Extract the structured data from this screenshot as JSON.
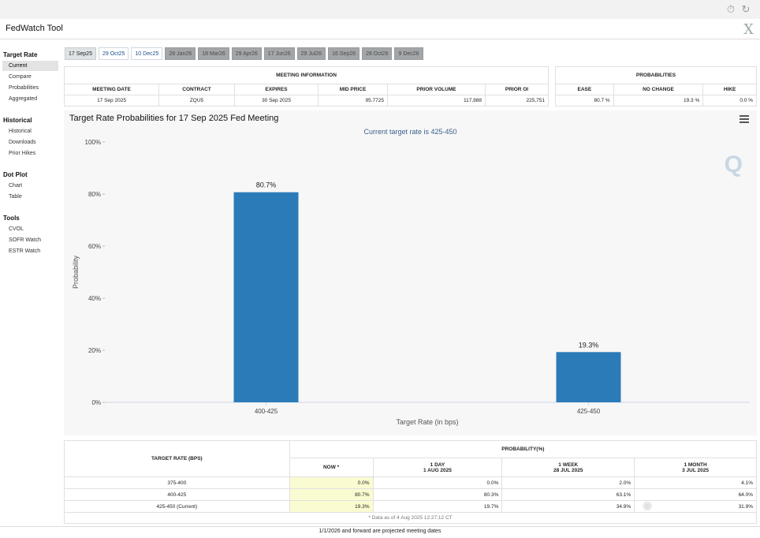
{
  "app": {
    "title": "FedWatch Tool",
    "close_glyph": "X"
  },
  "sidebar": [
    {
      "heading": "Target Rate",
      "items": [
        "Current",
        "Compare",
        "Probabilities",
        "Aggregated"
      ]
    },
    {
      "heading": "Historical",
      "items": [
        "Historical",
        "Downloads",
        "Prior Hikes"
      ]
    },
    {
      "heading": "Dot Plot",
      "items": [
        "Chart",
        "Table"
      ]
    },
    {
      "heading": "Tools",
      "items": [
        "CVOL",
        "SOFR Watch",
        "ESTR Watch"
      ]
    }
  ],
  "tabs": [
    "17 Sep25",
    "29 Oct25",
    "10 Dec25",
    "28 Jan26",
    "18 Mar26",
    "29 Apr26",
    "17 Jun26",
    "29 Jul26",
    "16 Sep26",
    "28 Oct26",
    "9 Dec26"
  ],
  "meeting_info": {
    "group_title": "MEETING INFORMATION",
    "headers": [
      "MEETING DATE",
      "CONTRACT",
      "EXPIRES",
      "MID PRICE",
      "PRIOR VOLUME",
      "PRIOR OI"
    ],
    "row": [
      "17 Sep 2025",
      "ZQU5",
      "30 Sep 2025",
      "95.7725",
      "117,988",
      "225,751"
    ]
  },
  "probabilities": {
    "group_title": "PROBABILITIES",
    "headers": [
      "EASE",
      "NO CHANGE",
      "HIKE"
    ],
    "row": [
      "80.7 %",
      "19.3 %",
      "0.0 %"
    ]
  },
  "chart": {
    "title": "Target Rate Probabilities for 17 Sep 2025 Fed Meeting",
    "subtitle": "Current target rate is 425-450"
  },
  "chart_data": {
    "type": "bar",
    "title": "Target Rate Probabilities for 17 Sep 2025 Fed Meeting",
    "subtitle": "Current target rate is 425-450",
    "categories": [
      "400-425",
      "425-450"
    ],
    "values": [
      80.7,
      19.3
    ],
    "data_labels": [
      "80.7%",
      "19.3%"
    ],
    "xlabel": "Target Rate (in bps)",
    "ylabel": "Probability",
    "ylim": [
      0,
      100
    ],
    "yticks": [
      "0%",
      "20%",
      "40%",
      "60%",
      "80%",
      "100%"
    ],
    "grid": false,
    "color": "#2b7bb9"
  },
  "prob_table": {
    "col_header": "TARGET RATE (BPS)",
    "group_title": "PROBABILITY(%)",
    "subheaders": [
      {
        "line1": "NOW *",
        "line2": ""
      },
      {
        "line1": "1 DAY",
        "line2": "1 AUG 2025"
      },
      {
        "line1": "1 WEEK",
        "line2": "28 JUL 2025"
      },
      {
        "line1": "1 MONTH",
        "line2": "3 JUL 2025"
      }
    ],
    "rows": [
      {
        "rate": "375-400",
        "values": [
          "0.0%",
          "0.0%",
          "2.0%",
          "4.1%"
        ]
      },
      {
        "rate": "400-425",
        "values": [
          "80.7%",
          "80.3%",
          "63.1%",
          "64.0%"
        ]
      },
      {
        "rate": "425-450 (Current)",
        "values": [
          "19.3%",
          "19.7%",
          "34.9%",
          "31.9%"
        ]
      }
    ],
    "footnote": "* Data as of 4 Aug 2025 12:27:12 CT"
  },
  "footer": "1/1/2026 and forward are projected meeting dates",
  "colors": {
    "bar": "#2b7bb9",
    "highlight": "#fbfbd1",
    "tab_dark": "#a3a6a8"
  }
}
